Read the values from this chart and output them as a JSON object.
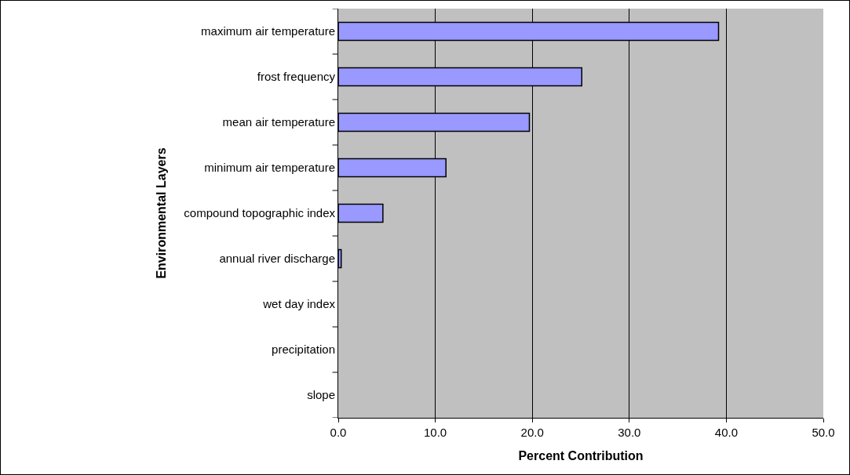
{
  "chart_data": {
    "type": "bar",
    "orientation": "horizontal",
    "xlabel": "Percent Contribution",
    "ylabel": "Environmental Layers",
    "categories": [
      "maximum air temperature",
      "frost frequency",
      "mean air temperature",
      "minimum air temperature",
      "compound topographic index",
      "annual river discharge",
      "wet day index",
      "precipitation",
      "slope"
    ],
    "values": [
      39.2,
      25.1,
      19.7,
      11.1,
      4.6,
      0.3,
      0,
      0,
      0
    ],
    "color": "#9999ff",
    "xlim": [
      0,
      50
    ],
    "xticks": [
      {
        "value": 0,
        "label": "0.0"
      },
      {
        "value": 10,
        "label": "10.0"
      },
      {
        "value": 20,
        "label": "20.0"
      },
      {
        "value": 30,
        "label": "30.0"
      },
      {
        "value": 40,
        "label": "40.0"
      },
      {
        "value": 50,
        "label": "50.0"
      }
    ],
    "grid": "x"
  }
}
